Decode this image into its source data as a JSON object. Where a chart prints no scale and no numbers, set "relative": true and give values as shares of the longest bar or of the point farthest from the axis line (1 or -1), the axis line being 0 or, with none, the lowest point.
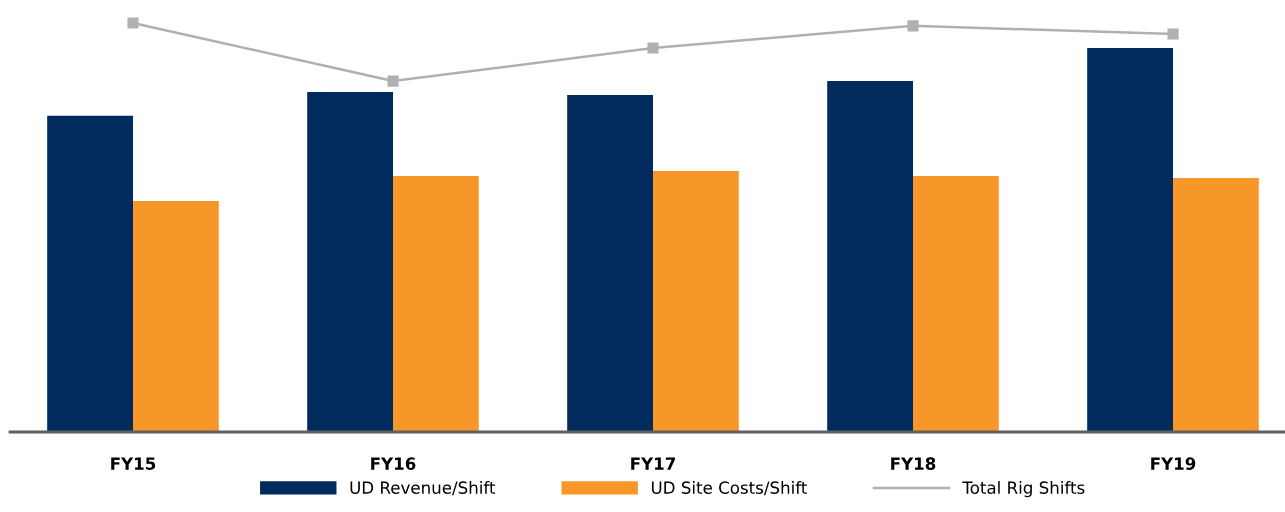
{
  "chart_data": {
    "type": "bar",
    "relative": true,
    "categories": [
      "FY15",
      "FY16",
      "FY17",
      "FY18",
      "FY19"
    ],
    "series": [
      {
        "name": "UD Revenue/Shift",
        "color": "#002b5c",
        "values": [
          0.773,
          0.831,
          0.824,
          0.858,
          0.939
        ]
      },
      {
        "name": "UD Site Costs/Shift",
        "color": "#f7972a",
        "values": [
          0.565,
          0.626,
          0.638,
          0.626,
          0.621
        ]
      },
      {
        "name": "Total Rig Shifts",
        "type": "line",
        "color": "#b0b0b0",
        "marker": "square",
        "values": [
          1,
          0.858,
          0.939,
          0.993,
          0.973
        ]
      }
    ],
    "legend": "bottom",
    "grid": false
  }
}
